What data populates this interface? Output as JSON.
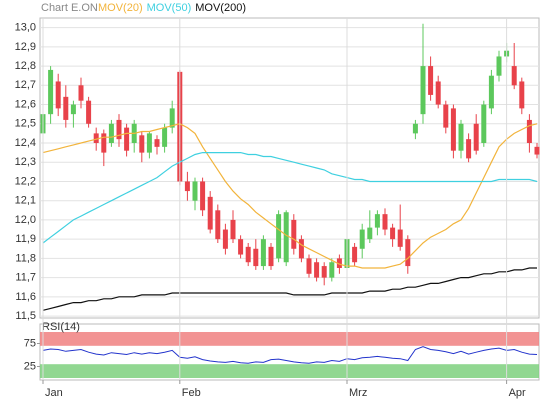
{
  "chart_data": [
    {
      "type": "candlestick",
      "title": "Chart E.ON",
      "categories": [
        "Jan",
        null,
        null,
        null,
        null,
        null,
        null,
        null,
        null,
        null,
        null,
        null,
        null,
        null,
        null,
        null,
        null,
        null,
        "Feb",
        null,
        null,
        null,
        null,
        null,
        null,
        null,
        null,
        null,
        null,
        null,
        null,
        null,
        null,
        null,
        null,
        null,
        null,
        null,
        null,
        null,
        "Mrz",
        null,
        null,
        null,
        null,
        null,
        null,
        null,
        null,
        null,
        null,
        null,
        null,
        null,
        null,
        null,
        null,
        null,
        null,
        null,
        null,
        "Apr",
        null,
        null,
        null,
        null
      ],
      "open": [
        12.45,
        12.55,
        12.72,
        12.64,
        12.55,
        12.7,
        12.62,
        12.45,
        12.45,
        12.4,
        12.52,
        12.48,
        12.4,
        12.44,
        12.35,
        12.42,
        12.38,
        12.48,
        12.77,
        12.2,
        12.1,
        12.2,
        12.12,
        12.05,
        11.95,
        12.0,
        11.9,
        11.86,
        11.85,
        11.76,
        11.86,
        11.8,
        11.78,
        12.0,
        11.9,
        11.8,
        11.78,
        11.76,
        11.7,
        11.8,
        11.75,
        11.86,
        11.85,
        11.9,
        11.96,
        12.03,
        11.96,
        11.95,
        11.9,
        12.45,
        12.55,
        12.8,
        12.72,
        12.6,
        12.58,
        12.36,
        12.42,
        12.5,
        12.4,
        12.58,
        12.75,
        12.85,
        12.8,
        12.72,
        12.52,
        12.38
      ],
      "high": [
        12.6,
        12.8,
        12.76,
        12.7,
        12.62,
        12.74,
        12.64,
        12.48,
        12.47,
        12.52,
        12.55,
        12.5,
        12.52,
        12.46,
        12.46,
        12.44,
        12.5,
        12.62,
        12.78,
        12.25,
        12.22,
        12.22,
        12.15,
        12.08,
        11.98,
        12.05,
        11.92,
        11.88,
        11.9,
        11.92,
        11.88,
        12.05,
        12.05,
        12.03,
        11.92,
        11.82,
        11.8,
        11.78,
        11.8,
        11.82,
        11.92,
        11.88,
        11.98,
        12.05,
        12.05,
        12.06,
        11.98,
        12.08,
        11.92,
        12.52,
        13.02,
        12.85,
        12.75,
        12.62,
        12.6,
        12.52,
        12.45,
        12.55,
        12.62,
        12.78,
        12.88,
        12.92,
        12.92,
        12.74,
        12.55,
        12.4
      ],
      "low": [
        12.4,
        12.5,
        12.54,
        12.48,
        12.48,
        12.58,
        12.48,
        12.36,
        12.28,
        12.38,
        12.38,
        12.33,
        12.35,
        12.3,
        12.32,
        12.34,
        12.35,
        12.45,
        12.18,
        12.1,
        12.05,
        12.02,
        11.93,
        11.88,
        11.82,
        11.88,
        11.8,
        11.76,
        11.74,
        11.74,
        11.74,
        11.78,
        11.76,
        11.82,
        11.78,
        11.7,
        11.68,
        11.66,
        11.68,
        11.72,
        11.73,
        11.76,
        11.8,
        11.88,
        11.92,
        11.92,
        11.86,
        11.84,
        11.72,
        12.42,
        12.5,
        12.62,
        12.58,
        12.45,
        12.32,
        12.32,
        12.3,
        12.34,
        12.38,
        12.55,
        12.72,
        12.82,
        12.68,
        12.55,
        12.35,
        12.32
      ],
      "close": [
        12.55,
        12.78,
        12.58,
        12.52,
        12.6,
        12.62,
        12.5,
        12.4,
        12.35,
        12.5,
        12.42,
        12.36,
        12.5,
        12.35,
        12.45,
        12.38,
        12.48,
        12.58,
        12.2,
        12.15,
        12.2,
        12.05,
        11.95,
        11.9,
        11.85,
        11.9,
        11.82,
        11.78,
        11.76,
        11.9,
        11.76,
        12.03,
        12.04,
        11.85,
        11.8,
        11.72,
        11.7,
        11.7,
        11.78,
        11.75,
        11.9,
        11.78,
        11.95,
        11.96,
        12.03,
        11.95,
        11.9,
        11.86,
        11.76,
        12.5,
        12.8,
        12.65,
        12.6,
        12.48,
        12.36,
        12.5,
        12.32,
        12.36,
        12.6,
        12.75,
        12.85,
        12.88,
        12.7,
        12.58,
        12.4,
        12.34
      ],
      "up_color": "#5cc85c",
      "down_color": "#e8424a",
      "series": [
        {
          "name": "MOV(20)",
          "color": "#f2b43c",
          "values": [
            12.35,
            12.36,
            12.37,
            12.38,
            12.39,
            12.4,
            12.41,
            12.42,
            12.43,
            12.43,
            12.44,
            12.45,
            12.45,
            12.46,
            12.46,
            12.47,
            12.48,
            12.49,
            12.5,
            12.48,
            12.45,
            12.38,
            12.32,
            12.26,
            12.2,
            12.15,
            12.11,
            12.08,
            12.04,
            12.01,
            11.98,
            11.95,
            11.92,
            11.9,
            11.87,
            11.85,
            11.83,
            11.81,
            11.79,
            11.77,
            11.76,
            11.76,
            11.75,
            11.75,
            11.75,
            11.75,
            11.76,
            11.77,
            11.8,
            11.84,
            11.88,
            11.91,
            11.93,
            11.95,
            11.98,
            12.0,
            12.06,
            12.14,
            12.22,
            12.3,
            12.38,
            12.42,
            12.45,
            12.47,
            12.49,
            12.5
          ]
        },
        {
          "name": "MOV(50)",
          "color": "#3fd0e0",
          "values": [
            11.88,
            11.91,
            11.94,
            11.97,
            12.0,
            12.02,
            12.04,
            12.06,
            12.08,
            12.1,
            12.12,
            12.14,
            12.16,
            12.18,
            12.2,
            12.22,
            12.25,
            12.28,
            12.3,
            12.32,
            12.34,
            12.35,
            12.35,
            12.35,
            12.35,
            12.35,
            12.35,
            12.34,
            12.34,
            12.33,
            12.33,
            12.32,
            12.31,
            12.3,
            12.29,
            12.28,
            12.27,
            12.26,
            12.24,
            12.23,
            12.22,
            12.21,
            12.21,
            12.2,
            12.2,
            12.2,
            12.2,
            12.2,
            12.2,
            12.2,
            12.2,
            12.2,
            12.2,
            12.2,
            12.2,
            12.2,
            12.2,
            12.2,
            12.2,
            12.2,
            12.21,
            12.21,
            12.21,
            12.21,
            12.21,
            12.2
          ]
        },
        {
          "name": "MOV(200)",
          "color": "#111111",
          "values": [
            11.53,
            11.54,
            11.55,
            11.56,
            11.57,
            11.57,
            11.58,
            11.58,
            11.59,
            11.59,
            11.6,
            11.6,
            11.6,
            11.61,
            11.61,
            11.61,
            11.61,
            11.62,
            11.62,
            11.62,
            11.62,
            11.62,
            11.62,
            11.62,
            11.62,
            11.62,
            11.62,
            11.62,
            11.62,
            11.62,
            11.62,
            11.62,
            11.62,
            11.61,
            11.61,
            11.61,
            11.61,
            11.61,
            11.62,
            11.62,
            11.62,
            11.62,
            11.62,
            11.63,
            11.63,
            11.63,
            11.64,
            11.64,
            11.65,
            11.65,
            11.66,
            11.67,
            11.67,
            11.68,
            11.69,
            11.7,
            11.7,
            11.71,
            11.72,
            11.72,
            11.73,
            11.73,
            11.74,
            11.74,
            11.75,
            11.75
          ]
        }
      ],
      "ylim": [
        11.49,
        13.05
      ],
      "yticks": [
        {
          "value": 11.5,
          "label": "11,5"
        },
        {
          "value": 11.6,
          "label": "11,6"
        },
        {
          "value": 11.7,
          "label": "11,7"
        },
        {
          "value": 11.8,
          "label": "11,8"
        },
        {
          "value": 11.9,
          "label": "11,9"
        },
        {
          "value": 12.0,
          "label": "12,0"
        },
        {
          "value": 12.1,
          "label": "12,1"
        },
        {
          "value": 12.2,
          "label": "12,2"
        },
        {
          "value": 12.3,
          "label": "12,3"
        },
        {
          "value": 12.4,
          "label": "12,4"
        },
        {
          "value": 12.5,
          "label": "12,5"
        },
        {
          "value": 12.6,
          "label": "12,6"
        },
        {
          "value": 12.7,
          "label": "12,7"
        },
        {
          "value": 12.8,
          "label": "12,8"
        },
        {
          "value": 12.9,
          "label": "12,9"
        },
        {
          "value": 13.0,
          "label": "13,0"
        }
      ],
      "grid": true
    },
    {
      "type": "line",
      "title": "RSI(14)",
      "color": "#2233cc",
      "values": [
        60,
        63,
        62,
        58,
        60,
        62,
        56,
        52,
        50,
        55,
        53,
        51,
        55,
        52,
        55,
        53,
        56,
        60,
        45,
        43,
        46,
        40,
        37,
        35,
        34,
        36,
        33,
        32,
        35,
        34,
        40,
        41,
        38,
        35,
        33,
        32,
        35,
        34,
        38,
        36,
        42,
        40,
        44,
        45,
        47,
        45,
        43,
        42,
        38,
        62,
        68,
        62,
        60,
        57,
        53,
        58,
        52,
        56,
        60,
        63,
        65,
        60,
        62,
        56,
        52,
        51
      ],
      "ylim": [
        0,
        100
      ],
      "yticks": [
        25,
        75
      ],
      "bands": [
        {
          "from": 70,
          "to": 100,
          "color": "#f08080"
        },
        {
          "from": 0,
          "to": 30,
          "color": "#7ed07e"
        }
      ]
    }
  ]
}
